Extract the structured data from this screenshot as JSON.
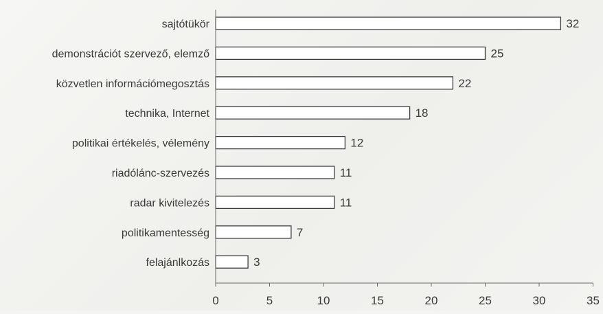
{
  "chart_data": {
    "type": "bar",
    "orientation": "horizontal",
    "categories": [
      "sajtótükör",
      "demonstrációt szervező, elemző",
      "közvetlen információmegosztás",
      "technika, Internet",
      "politikai értékelés, vélemény",
      "riadólánc-szervezés",
      "radar kivitelezés",
      "politikamentesség",
      "felajánlkozás"
    ],
    "values": [
      32,
      25,
      22,
      18,
      12,
      11,
      11,
      7,
      3
    ],
    "xlim": [
      0,
      35
    ],
    "xticks": [
      0,
      5,
      10,
      15,
      20,
      25,
      30,
      35
    ],
    "title": "",
    "xlabel": "",
    "ylabel": "",
    "grid": false,
    "legend": "none",
    "bar_fill": "#ffffff",
    "bar_stroke": "#3c3c3c"
  }
}
